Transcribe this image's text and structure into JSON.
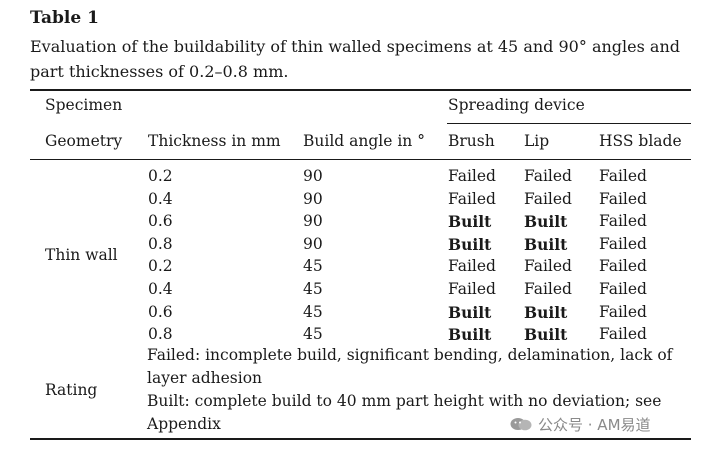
{
  "caption": {
    "label": "Table 1",
    "text": "Evaluation of the buildability of thin walled specimens at 45 and 90° angles and part thicknesses of 0.2–0.8 mm."
  },
  "headers": {
    "specimen": "Specimen",
    "spreading_device": "Spreading device",
    "geometry": "Geometry",
    "thickness": "Thickness in mm",
    "build_angle": "Build angle in °",
    "brush": "Brush",
    "lip": "Lip",
    "hss_blade": "HSS blade"
  },
  "geometry_label": "Thin wall",
  "rows": [
    {
      "thickness": "0.2",
      "angle": "90",
      "brush": "Failed",
      "lip": "Failed",
      "hss": "Failed"
    },
    {
      "thickness": "0.4",
      "angle": "90",
      "brush": "Failed",
      "lip": "Failed",
      "hss": "Failed"
    },
    {
      "thickness": "0.6",
      "angle": "90",
      "brush": "Built",
      "lip": "Built",
      "hss": "Failed"
    },
    {
      "thickness": "0.8",
      "angle": "90",
      "brush": "Built",
      "lip": "Built",
      "hss": "Failed"
    },
    {
      "thickness": "0.2",
      "angle": "45",
      "brush": "Failed",
      "lip": "Failed",
      "hss": "Failed"
    },
    {
      "thickness": "0.4",
      "angle": "45",
      "brush": "Failed",
      "lip": "Failed",
      "hss": "Failed"
    },
    {
      "thickness": "0.6",
      "angle": "45",
      "brush": "Built",
      "lip": "Built",
      "hss": "Failed"
    },
    {
      "thickness": "0.8",
      "angle": "45",
      "brush": "Built",
      "lip": "Built",
      "hss": "Failed"
    }
  ],
  "rating": {
    "label": "Rating",
    "failed_definition": "Failed: incomplete build, significant bending, delamination, lack of layer adhesion",
    "built_definition": "Built: complete build to 40 mm part height with no deviation; see Appendix"
  },
  "watermark": "公众号 · AM易道"
}
